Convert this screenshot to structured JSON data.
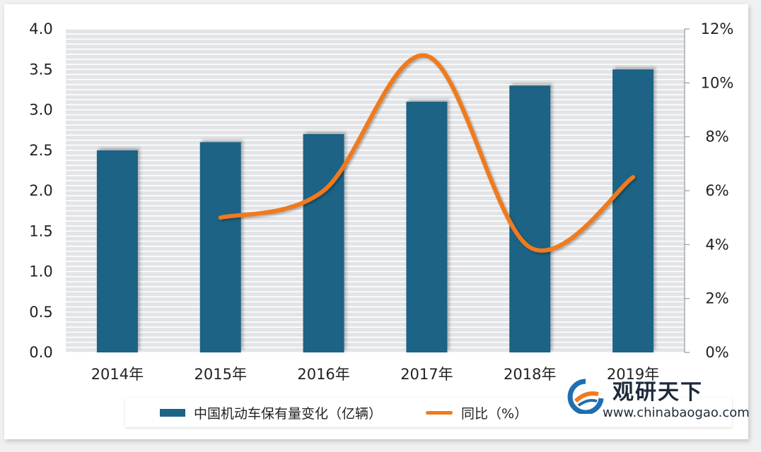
{
  "chart_data": {
    "type": "bar",
    "categories": [
      "2014年",
      "2015年",
      "2016年",
      "2017年",
      "2018年",
      "2019年"
    ],
    "series": [
      {
        "name": "中国机动车保有量变化（亿辆）",
        "type": "bar",
        "axis": "left",
        "color": "#1b6485",
        "values": [
          2.5,
          2.6,
          2.7,
          3.1,
          3.3,
          3.5
        ]
      },
      {
        "name": "同比（%）",
        "type": "line",
        "axis": "right",
        "color": "#f07a1e",
        "values": [
          null,
          5.0,
          6.0,
          11.0,
          3.9,
          6.5
        ]
      }
    ],
    "ylim_left": [
      0,
      4
    ],
    "yticks_left": [
      "0.0",
      "0.5",
      "1.0",
      "1.5",
      "2.0",
      "2.5",
      "3.0",
      "3.5",
      "4.0"
    ],
    "ylim_right": [
      0,
      12
    ],
    "yticks_right": [
      "0%",
      "2%",
      "4%",
      "6%",
      "8%",
      "10%",
      "12%"
    ],
    "grid": true,
    "legend_position": "bottom"
  },
  "legend": {
    "bar_label": "中国机动车保有量变化（亿辆）",
    "line_label": "同比（%）"
  },
  "watermark": {
    "title": "观研天下",
    "url": "www.chinabaogao.com"
  }
}
